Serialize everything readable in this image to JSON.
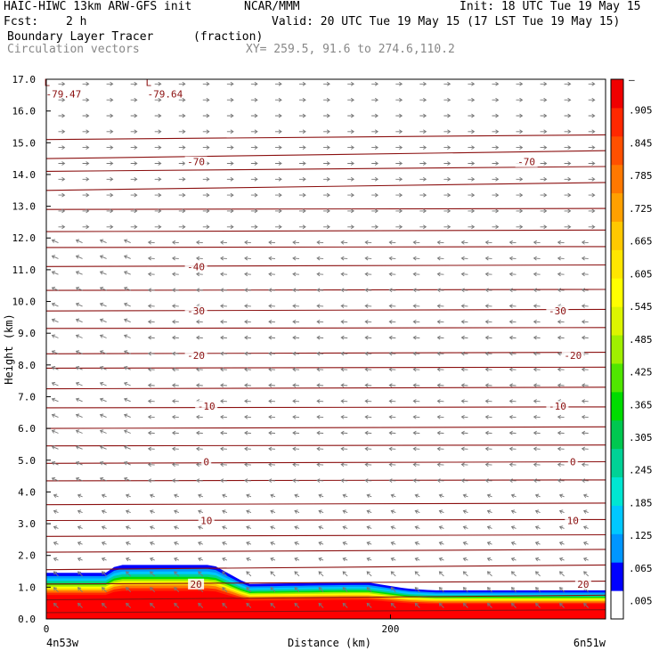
{
  "header": {
    "model": "HAIC-HIWC 13km ARW-GFS init",
    "org": "NCAR/MMM",
    "init": "Init: 18 UTC Tue 19 May 15",
    "fcst_label": "Fcst:",
    "fcst_value": "2 h",
    "valid": "Valid: 20 UTC Tue 19 May 15 (17 LST Tue 19 May 15)",
    "field": "Boundary Layer Tracer",
    "units": "(fraction)",
    "vectors": "Circulation vectors",
    "xy": "XY= 259.5, 91.6 to 274.6,110.2"
  },
  "colors": {
    "contour": "#8b1010",
    "vector": "#777777",
    "colorbar": [
      "#ffffff",
      "#0000ff",
      "#0096ff",
      "#00c8ff",
      "#00e6d2",
      "#00d296",
      "#00c850",
      "#00dc00",
      "#50e600",
      "#a0f000",
      "#dcf500",
      "#ffff00",
      "#ffe600",
      "#ffc800",
      "#ffa000",
      "#ff7800",
      "#ff5000",
      "#ff2800",
      "#f00000"
    ]
  },
  "chart_data": {
    "type": "cross-section",
    "title": "Boundary Layer Tracer",
    "units": "(fraction)",
    "xlabel": "Distance (km)",
    "ylabel": "Height (km)",
    "x_ticks": [
      {
        "value": 0,
        "label": "0"
      },
      {
        "value": 200,
        "label": "200"
      }
    ],
    "x_end_labels": {
      "left": "4n53w",
      "right": "6n51w"
    },
    "ylim": [
      0,
      17
    ],
    "y_ticks": [
      "0.0",
      "1.0",
      "2.0",
      "3.0",
      "4.0",
      "5.0",
      "6.0",
      "7.0",
      "8.0",
      "9.0",
      "10.0",
      "11.0",
      "12.0",
      "13.0",
      "14.0",
      "15.0",
      "16.0",
      "17.0"
    ],
    "colorbar_labels": [
      ".005",
      ".065",
      ".125",
      ".185",
      ".245",
      ".305",
      ".365",
      ".425",
      ".485",
      ".545",
      ".605",
      ".665",
      ".725",
      ".785",
      ".845",
      ".905"
    ],
    "colorbar_top_label": "–",
    "low_labels": [
      {
        "text": "L",
        "value": "-79.47",
        "x_km": 7,
        "height_km": 16.9
      },
      {
        "text": "L",
        "value": "-79.64",
        "x_km": 66,
        "height_km": 16.9
      }
    ],
    "contour_labels": [
      {
        "text": "-70",
        "x_km": 87,
        "height_km": 14.4
      },
      {
        "text": "-70",
        "x_km": 279,
        "height_km": 14.4
      },
      {
        "text": "-40",
        "x_km": 87,
        "height_km": 11.1
      },
      {
        "text": "-30",
        "x_km": 87,
        "height_km": 9.7
      },
      {
        "text": "-30",
        "x_km": 297,
        "height_km": 9.7
      },
      {
        "text": "-20",
        "x_km": 87,
        "height_km": 8.3
      },
      {
        "text": "-20",
        "x_km": 306,
        "height_km": 8.3
      },
      {
        "text": "-10",
        "x_km": 93,
        "height_km": 6.7
      },
      {
        "text": "-10",
        "x_km": 297,
        "height_km": 6.7
      },
      {
        "text": "0",
        "x_km": 93,
        "height_km": 4.95
      },
      {
        "text": "0",
        "x_km": 306,
        "height_km": 4.95
      },
      {
        "text": "10",
        "x_km": 93,
        "height_km": 3.1
      },
      {
        "text": "10",
        "x_km": 306,
        "height_km": 3.1
      },
      {
        "text": "20",
        "x_km": 87,
        "height_km": 1.1
      },
      {
        "text": "20",
        "x_km": 312,
        "height_km": 1.1
      }
    ],
    "isotherm_heights_km": [
      0.2,
      0.6,
      1.1,
      1.55,
      2.1,
      2.6,
      3.1,
      3.6,
      4.35,
      4.9,
      5.45,
      6.0,
      6.65,
      7.25,
      7.9,
      8.35,
      9.15,
      9.7,
      10.35,
      11.1,
      11.7,
      12.2,
      12.9,
      13.5,
      14.1,
      14.5,
      15.1
    ],
    "pbl_top_km": [
      {
        "x_km": 0,
        "h": 1.45
      },
      {
        "x_km": 35,
        "h": 1.45
      },
      {
        "x_km": 41,
        "h": 1.7
      },
      {
        "x_km": 97,
        "h": 1.7
      },
      {
        "x_km": 117,
        "h": 1.1
      },
      {
        "x_km": 175,
        "h": 1.15
      },
      {
        "x_km": 187,
        "h": 1.15
      },
      {
        "x_km": 210,
        "h": 0.95
      },
      {
        "x_km": 225,
        "h": 0.9
      },
      {
        "x_km": 325,
        "h": 0.9
      }
    ],
    "xlim": [
      0,
      325
    ]
  }
}
